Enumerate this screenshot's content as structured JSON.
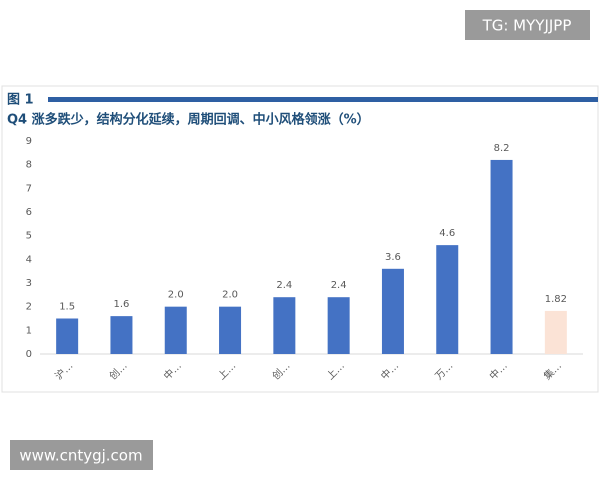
{
  "watermarks": {
    "top": "TG: MYYJJPP",
    "bottom": "www.cntygj.com"
  },
  "chart_data": {
    "type": "bar",
    "figure_label": "图 1",
    "title": "Q4 涨多跌少，结构分化延续，周期回调、中小风格领涨（%）",
    "categories": [
      "沪…",
      "创…",
      "中…",
      "上…",
      "创…",
      "上…",
      "中…",
      "万…",
      "中…",
      "集…"
    ],
    "values": [
      1.5,
      1.6,
      2.0,
      2.0,
      2.4,
      2.4,
      3.6,
      4.6,
      8.2,
      1.82
    ],
    "value_labels": [
      "1.5",
      "1.6",
      "2.0",
      "2.0",
      "2.4",
      "2.4",
      "3.6",
      "4.6",
      "8.2",
      "1.82"
    ],
    "colors": [
      "#4472c4",
      "#4472c4",
      "#4472c4",
      "#4472c4",
      "#4472c4",
      "#4472c4",
      "#4472c4",
      "#4472c4",
      "#4472c4",
      "#fbe3d6"
    ],
    "ylim": [
      0,
      9
    ],
    "yticks": [
      0,
      1,
      2,
      3,
      4,
      5,
      6,
      7,
      8,
      9
    ],
    "grid": false
  }
}
